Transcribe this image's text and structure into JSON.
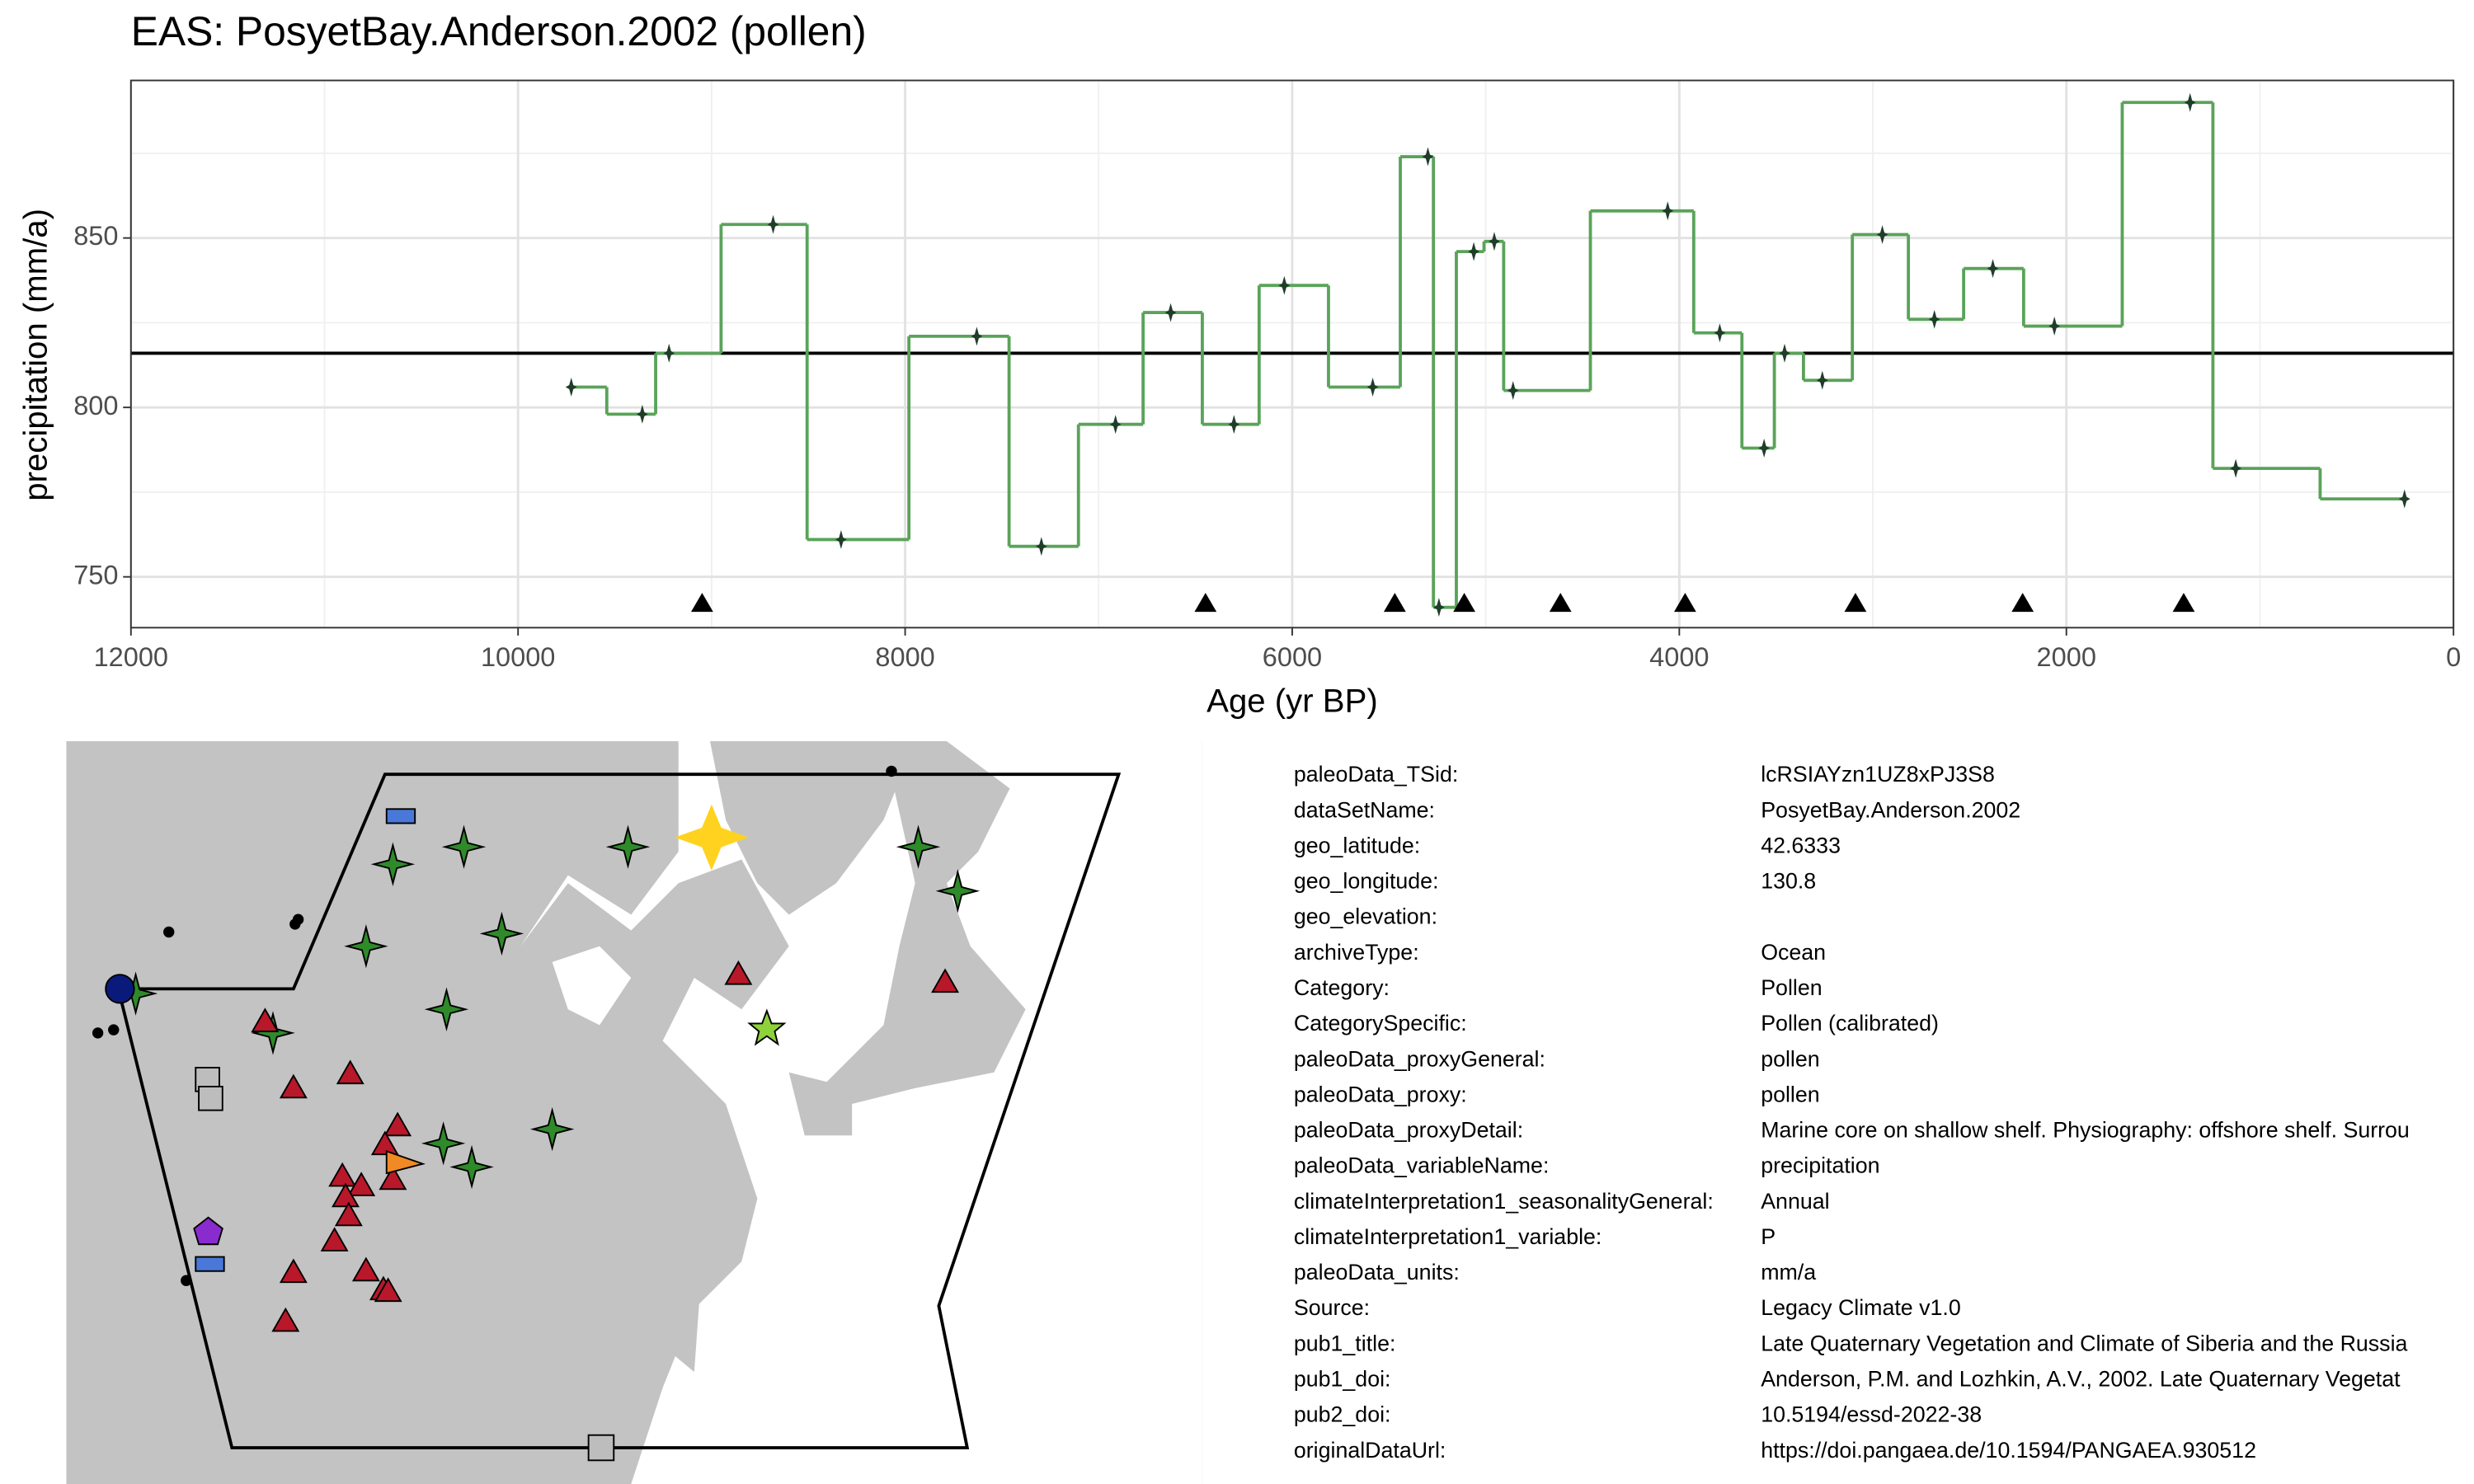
{
  "chart_data": {
    "type": "step",
    "title": "EAS: PosyetBay.Anderson.2002 (pollen)",
    "x_label": "Age (yr BP)",
    "y_label": "precipitation (mm/a)",
    "xlim": [
      12000,
      0
    ],
    "xticks": [
      12000,
      10000,
      8000,
      6000,
      4000,
      2000,
      0
    ],
    "ylim": [
      735,
      896.5
    ],
    "yticks": [
      750,
      800,
      850
    ],
    "grid": true,
    "series": [
      {
        "color": "#5aa35a",
        "marker_color": "#1f3d28",
        "x": [
          9725,
          9358,
          9220,
          8682,
          8331,
          7630,
          7296,
          6913,
          6628,
          6301,
          6041,
          5584,
          5299,
          5242,
          5062,
          4956,
          4859,
          4060,
          3791,
          3562,
          3456,
          3261,
          2951,
          2682,
          2380,
          2062,
          1361,
          1125,
          253
        ],
        "values": [
          806,
          798,
          816,
          854,
          761,
          821,
          759,
          795,
          828,
          795,
          836,
          806,
          874,
          741,
          846,
          849,
          805,
          858,
          822,
          788,
          816,
          808,
          851,
          826,
          841,
          824,
          890,
          782,
          773
        ]
      }
    ],
    "reference_line": 816,
    "age_markers": {
      "x": [
        9049,
        6448,
        5470,
        5111,
        4614,
        3970,
        3090,
        2226,
        1394
      ],
      "y": 742
    }
  },
  "metadata": {
    "rows": [
      {
        "key": "paleoData_TSid:",
        "value": "lcRSIAYzn1UZ8xPJ3S8"
      },
      {
        "key": "dataSetName:",
        "value": "PosyetBay.Anderson.2002"
      },
      {
        "key": "geo_latitude:",
        "value": "42.6333"
      },
      {
        "key": "geo_longitude:",
        "value": "130.8"
      },
      {
        "key": "geo_elevation:"
      },
      {
        "key": "archiveType:",
        "value": "Ocean"
      },
      {
        "key": "Category:",
        "value": "Pollen"
      },
      {
        "key": "CategorySpecific:",
        "value": "Pollen (calibrated)"
      },
      {
        "key": "paleoData_proxyGeneral:",
        "value": "pollen"
      },
      {
        "key": "paleoData_proxy:",
        "value": "pollen"
      },
      {
        "key": "paleoData_proxyDetail:",
        "value": "Marine core on shallow shelf. Physiography: offshore shelf. Surrou"
      },
      {
        "key": "paleoData_variableName:",
        "value": "precipitation"
      },
      {
        "key": "climateInterpretation1_seasonalityGeneral:",
        "value": "Annual"
      },
      {
        "key": "climateInterpretation1_variable:",
        "value": "P"
      },
      {
        "key": "paleoData_units:",
        "value": "mm/a"
      },
      {
        "key": "Source:",
        "value": "Legacy Climate v1.0"
      },
      {
        "key": "pub1_title:",
        "value": "Late Quaternary Vegetation and Climate of Siberia and the Russia"
      },
      {
        "key": "pub1_doi:",
        "value": "Anderson, P.M. and Lozhkin, A.V., 2002. Late Quaternary Vegetat"
      },
      {
        "key": "pub2_doi:",
        "value": "10.5194/essd-2022-38"
      },
      {
        "key": "originalDataUrl:",
        "value": "https://doi.pangaea.de/10.1594/PANGAEA.930512"
      }
    ]
  }
}
